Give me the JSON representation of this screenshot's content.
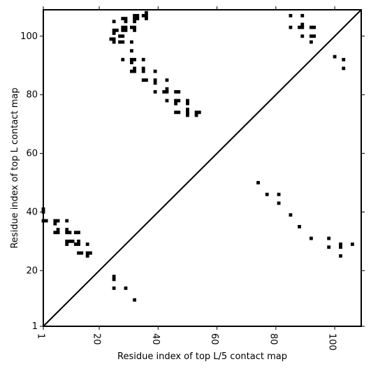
{
  "chart_data": {
    "type": "scatter",
    "title": "",
    "xlabel": "Residue index of top L/5 contact map",
    "ylabel": "Residue index of top L contact map",
    "xlim": [
      1,
      109
    ],
    "ylim": [
      1,
      109
    ],
    "xticks": [
      1,
      20,
      40,
      60,
      80,
      100
    ],
    "yticks": [
      1,
      20,
      40,
      60,
      80,
      100
    ],
    "xtick_labels": [
      "1",
      "20",
      "40",
      "60",
      "80",
      "100"
    ],
    "ytick_labels": [
      "1",
      "20",
      "40",
      "60",
      "80",
      "100"
    ],
    "diagonal": true,
    "grid": false,
    "marker_color": "#000000",
    "series": [
      {
        "points": [
          [
            1,
            41
          ],
          [
            1,
            40
          ],
          [
            1,
            37
          ],
          [
            2,
            37
          ],
          [
            5,
            37
          ],
          [
            5,
            36
          ],
          [
            6,
            37
          ],
          [
            5,
            33
          ],
          [
            6,
            34
          ],
          [
            6,
            33
          ],
          [
            9,
            37
          ],
          [
            9,
            34
          ],
          [
            9,
            33
          ],
          [
            10,
            33
          ],
          [
            9,
            30
          ],
          [
            10,
            30
          ],
          [
            9,
            29
          ],
          [
            11,
            30
          ],
          [
            12,
            33
          ],
          [
            13,
            33
          ],
          [
            12,
            29
          ],
          [
            13,
            30
          ],
          [
            13,
            29
          ],
          [
            13,
            26
          ],
          [
            14,
            26
          ],
          [
            16,
            29
          ],
          [
            16,
            26
          ],
          [
            17,
            26
          ],
          [
            16,
            25
          ],
          [
            25,
            18
          ],
          [
            25,
            17
          ],
          [
            25,
            14
          ],
          [
            29,
            14
          ],
          [
            32,
            10
          ],
          [
            24,
            99
          ],
          [
            25,
            99
          ],
          [
            25,
            98
          ],
          [
            25,
            101
          ],
          [
            25,
            102
          ],
          [
            26,
            102
          ],
          [
            25,
            105
          ],
          [
            27,
            98
          ],
          [
            28,
            98
          ],
          [
            27,
            100
          ],
          [
            28,
            100
          ],
          [
            28,
            102
          ],
          [
            28,
            103
          ],
          [
            29,
            102
          ],
          [
            29,
            103
          ],
          [
            28,
            106
          ],
          [
            29,
            106
          ],
          [
            29,
            105
          ],
          [
            28,
            92
          ],
          [
            31,
            98
          ],
          [
            31,
            95
          ],
          [
            31,
            92
          ],
          [
            32,
            92
          ],
          [
            31,
            91
          ],
          [
            31,
            88
          ],
          [
            32,
            88
          ],
          [
            32,
            89
          ],
          [
            31,
            103
          ],
          [
            32,
            103
          ],
          [
            32,
            102
          ],
          [
            32,
            105
          ],
          [
            32,
            106
          ],
          [
            32,
            107
          ],
          [
            33,
            106
          ],
          [
            33,
            107
          ],
          [
            35,
            107
          ],
          [
            36,
            107
          ],
          [
            36,
            108
          ],
          [
            36,
            106
          ],
          [
            35,
            92
          ],
          [
            35,
            89
          ],
          [
            35,
            88
          ],
          [
            35,
            85
          ],
          [
            36,
            85
          ],
          [
            39,
            88
          ],
          [
            39,
            85
          ],
          [
            39,
            84
          ],
          [
            39,
            81
          ],
          [
            42,
            81
          ],
          [
            43,
            81
          ],
          [
            43,
            82
          ],
          [
            43,
            85
          ],
          [
            43,
            78
          ],
          [
            46,
            81
          ],
          [
            47,
            81
          ],
          [
            46,
            78
          ],
          [
            47,
            78
          ],
          [
            46,
            77
          ],
          [
            46,
            74
          ],
          [
            47,
            74
          ],
          [
            50,
            78
          ],
          [
            50,
            77
          ],
          [
            50,
            75
          ],
          [
            50,
            74
          ],
          [
            50,
            73
          ],
          [
            53,
            74
          ],
          [
            54,
            74
          ],
          [
            53,
            73
          ],
          [
            74,
            50
          ],
          [
            77,
            46
          ],
          [
            81,
            46
          ],
          [
            81,
            43
          ],
          [
            85,
            39
          ],
          [
            88,
            35
          ],
          [
            92,
            31
          ],
          [
            98,
            31
          ],
          [
            98,
            28
          ],
          [
            102,
            29
          ],
          [
            102,
            28
          ],
          [
            102,
            25
          ],
          [
            106,
            29
          ],
          [
            85,
            107
          ],
          [
            85,
            103
          ],
          [
            88,
            103
          ],
          [
            89,
            103
          ],
          [
            89,
            104
          ],
          [
            89,
            107
          ],
          [
            89,
            100
          ],
          [
            92,
            103
          ],
          [
            93,
            103
          ],
          [
            92,
            100
          ],
          [
            93,
            100
          ],
          [
            92,
            98
          ],
          [
            100,
            93
          ],
          [
            103,
            92
          ],
          [
            103,
            89
          ]
        ]
      }
    ]
  }
}
